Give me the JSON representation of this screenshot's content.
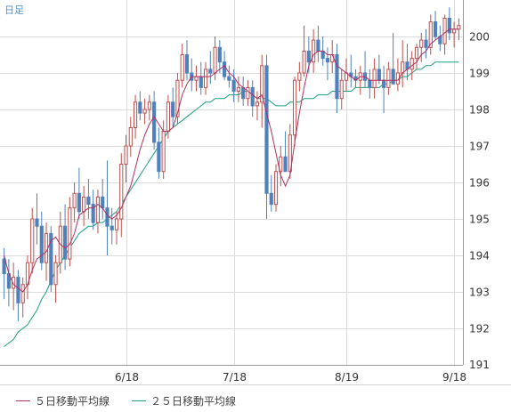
{
  "period_label": "日足",
  "colors": {
    "up": "#c0504d",
    "down": "#4f81bd",
    "ma5": "#b03060",
    "ma25": "#1aa080",
    "grid": "#dcdcdc",
    "axis_text": "#333333",
    "period_text": "#4a90d0"
  },
  "legend": [
    {
      "label": "５日移動平均線",
      "color_key": "ma5"
    },
    {
      "label": "２５日移動平均線",
      "color_key": "ma25"
    }
  ],
  "chart_data": {
    "type": "candlestick",
    "y_range": [
      191,
      201
    ],
    "y_ticks": [
      191,
      192,
      193,
      194,
      195,
      196,
      197,
      198,
      199,
      200
    ],
    "x_ticks": [
      {
        "label": "6/18",
        "index": 26
      },
      {
        "label": "7/18",
        "index": 49
      },
      {
        "label": "8/19",
        "index": 73
      },
      {
        "label": "9/18",
        "index": 96
      }
    ],
    "candles": [
      [
        193.9,
        194.2,
        192.8,
        193.5
      ],
      [
        193.5,
        193.9,
        192.6,
        193.1
      ],
      [
        193.1,
        193.8,
        192.5,
        193.4
      ],
      [
        193.4,
        193.6,
        192.2,
        192.7
      ],
      [
        192.7,
        193.4,
        192.3,
        193.2
      ],
      [
        193.2,
        194.0,
        192.8,
        193.8
      ],
      [
        193.8,
        195.3,
        193.5,
        195.0
      ],
      [
        195.0,
        195.7,
        194.3,
        194.8
      ],
      [
        194.8,
        195.2,
        193.6,
        193.8
      ],
      [
        193.8,
        194.9,
        193.3,
        194.6
      ],
      [
        194.6,
        194.8,
        193.0,
        193.2
      ],
      [
        193.2,
        194.0,
        192.7,
        193.8
      ],
      [
        193.8,
        195.2,
        193.5,
        194.8
      ],
      [
        194.8,
        195.4,
        193.6,
        193.9
      ],
      [
        193.9,
        195.6,
        193.7,
        195.3
      ],
      [
        195.3,
        196.0,
        194.9,
        195.7
      ],
      [
        195.7,
        196.4,
        195.0,
        195.2
      ],
      [
        195.2,
        195.9,
        194.8,
        195.6
      ],
      [
        195.6,
        196.1,
        195.0,
        195.4
      ],
      [
        195.4,
        195.8,
        194.7,
        194.9
      ],
      [
        194.9,
        195.8,
        194.6,
        195.6
      ],
      [
        195.6,
        196.1,
        195.0,
        195.3
      ],
      [
        195.3,
        196.6,
        194.0,
        194.8
      ],
      [
        194.8,
        195.3,
        194.3,
        194.7
      ],
      [
        194.7,
        195.2,
        194.3,
        195.0
      ],
      [
        195.0,
        196.8,
        194.5,
        196.5
      ],
      [
        196.5,
        197.3,
        196.0,
        197.0
      ],
      [
        197.0,
        197.8,
        196.7,
        197.5
      ],
      [
        197.5,
        198.4,
        197.2,
        198.2
      ],
      [
        198.2,
        198.5,
        197.7,
        197.9
      ],
      [
        197.9,
        198.3,
        197.6,
        198.0
      ],
      [
        198.0,
        198.4,
        197.7,
        198.2
      ],
      [
        198.2,
        198.5,
        196.9,
        197.1
      ],
      [
        197.1,
        197.5,
        196.1,
        196.3
      ],
      [
        196.3,
        197.7,
        196.1,
        197.4
      ],
      [
        197.4,
        198.4,
        197.2,
        198.2
      ],
      [
        198.2,
        198.6,
        197.5,
        197.8
      ],
      [
        197.8,
        199.0,
        197.6,
        198.8
      ],
      [
        198.8,
        199.8,
        198.6,
        199.5
      ],
      [
        199.5,
        199.9,
        198.8,
        199.0
      ],
      [
        199.0,
        199.4,
        198.5,
        198.8
      ],
      [
        198.8,
        199.2,
        198.5,
        198.9
      ],
      [
        198.9,
        199.3,
        198.4,
        198.6
      ],
      [
        198.6,
        199.3,
        198.4,
        199.1
      ],
      [
        199.1,
        199.6,
        198.7,
        199.0
      ],
      [
        199.0,
        200.0,
        198.8,
        199.7
      ],
      [
        199.7,
        199.9,
        199.0,
        199.3
      ],
      [
        199.3,
        199.6,
        198.8,
        198.9
      ],
      [
        198.9,
        199.2,
        198.6,
        198.8
      ],
      [
        198.8,
        199.1,
        198.2,
        198.5
      ],
      [
        198.5,
        198.9,
        198.2,
        198.6
      ],
      [
        198.6,
        198.9,
        198.1,
        198.3
      ],
      [
        198.3,
        198.8,
        198.1,
        198.6
      ],
      [
        198.6,
        198.8,
        197.8,
        198.1
      ],
      [
        198.1,
        198.5,
        197.7,
        198.2
      ],
      [
        198.2,
        199.5,
        197.5,
        199.2
      ],
      [
        199.2,
        199.5,
        195.0,
        195.7
      ],
      [
        195.7,
        196.2,
        195.2,
        195.4
      ],
      [
        195.4,
        196.5,
        195.2,
        196.3
      ],
      [
        196.3,
        197.0,
        195.9,
        196.7
      ],
      [
        196.7,
        197.4,
        196.4,
        196.3
      ],
      [
        196.3,
        197.6,
        196.1,
        197.3
      ],
      [
        197.3,
        198.9,
        197.0,
        198.8
      ],
      [
        198.8,
        199.3,
        198.5,
        199.0
      ],
      [
        199.0,
        200.3,
        198.9,
        199.6
      ],
      [
        199.6,
        200.0,
        199.0,
        199.3
      ],
      [
        199.3,
        200.2,
        199.0,
        199.9
      ],
      [
        199.9,
        200.3,
        199.3,
        199.6
      ],
      [
        199.6,
        200.0,
        199.2,
        199.4
      ],
      [
        199.4,
        199.7,
        198.8,
        199.3
      ],
      [
        199.3,
        199.9,
        199.0,
        199.5
      ],
      [
        199.5,
        199.8,
        197.9,
        198.3
      ],
      [
        198.3,
        199.1,
        198.0,
        198.8
      ],
      [
        198.8,
        199.4,
        198.5,
        199.0
      ],
      [
        199.0,
        199.5,
        198.6,
        198.9
      ],
      [
        198.9,
        199.1,
        198.6,
        198.8
      ],
      [
        198.8,
        199.2,
        198.4,
        199.0
      ],
      [
        199.0,
        199.6,
        198.6,
        198.8
      ],
      [
        198.8,
        199.1,
        198.3,
        198.6
      ],
      [
        198.6,
        199.4,
        198.3,
        199.1
      ],
      [
        199.1,
        199.5,
        198.7,
        198.8
      ],
      [
        198.8,
        199.2,
        197.9,
        198.6
      ],
      [
        198.6,
        199.3,
        198.4,
        199.1
      ],
      [
        199.1,
        200.1,
        198.7,
        198.7
      ],
      [
        198.7,
        199.4,
        198.5,
        199.0
      ],
      [
        199.0,
        199.9,
        198.6,
        199.3
      ],
      [
        199.3,
        199.8,
        198.8,
        199.1
      ],
      [
        199.1,
        199.6,
        198.8,
        199.4
      ],
      [
        199.4,
        199.8,
        199.1,
        199.7
      ],
      [
        199.7,
        200.1,
        199.3,
        199.9
      ],
      [
        199.9,
        200.2,
        199.4,
        199.7
      ],
      [
        199.7,
        200.6,
        199.5,
        200.4
      ],
      [
        200.4,
        200.7,
        199.9,
        200.0
      ],
      [
        200.0,
        200.3,
        199.6,
        199.8
      ],
      [
        199.8,
        200.6,
        199.5,
        200.5
      ],
      [
        200.5,
        200.8,
        199.9,
        200.1
      ],
      [
        200.1,
        200.4,
        199.7,
        200.2
      ],
      [
        200.2,
        200.5,
        199.9,
        200.3
      ]
    ],
    "ma5": [
      194.0,
      193.5,
      193.2,
      193.1,
      193.0,
      193.2,
      193.6,
      193.9,
      194.0,
      194.1,
      194.4,
      194.5,
      194.3,
      194.2,
      194.3,
      194.6,
      195.1,
      195.2,
      195.3,
      195.3,
      195.4,
      195.3,
      195.1,
      195.0,
      195.1,
      195.3,
      195.6,
      195.9,
      196.4,
      196.9,
      197.3,
      197.6,
      197.8,
      197.6,
      197.4,
      197.4,
      197.5,
      197.9,
      198.4,
      198.7,
      198.9,
      198.9,
      198.9,
      198.9,
      198.9,
      199.0,
      199.1,
      199.2,
      199.0,
      198.9,
      198.7,
      198.6,
      198.5,
      198.4,
      198.3,
      198.4,
      197.9,
      197.4,
      196.8,
      196.2,
      195.9,
      196.2,
      197.1,
      197.9,
      198.6,
      199.2,
      199.5,
      199.6,
      199.6,
      199.5,
      199.5,
      199.2,
      199.1,
      199.0,
      198.9,
      198.8,
      198.9,
      198.9,
      198.8,
      198.8,
      198.8,
      198.8,
      198.8,
      198.8,
      198.8,
      199.0,
      199.1,
      199.2,
      199.3,
      199.5,
      199.6,
      199.8,
      199.9,
      200.0,
      200.1,
      200.2,
      200.2,
      200.2
    ],
    "ma25": [
      191.5,
      191.6,
      191.7,
      191.9,
      192.0,
      192.1,
      192.3,
      192.5,
      192.8,
      193.0,
      193.3,
      193.6,
      193.8,
      194.0,
      194.2,
      194.4,
      194.6,
      194.7,
      194.8,
      194.8,
      194.9,
      194.9,
      195.0,
      195.1,
      195.2,
      195.4,
      195.6,
      195.8,
      196.0,
      196.2,
      196.4,
      196.6,
      196.8,
      197.0,
      197.2,
      197.4,
      197.5,
      197.6,
      197.7,
      197.8,
      197.9,
      198.0,
      198.1,
      198.2,
      198.2,
      198.3,
      198.3,
      198.3,
      198.4,
      198.4,
      198.4,
      198.5,
      198.5,
      198.4,
      198.3,
      198.3,
      198.3,
      198.2,
      198.1,
      198.1,
      198.1,
      198.2,
      198.2,
      198.2,
      198.3,
      198.3,
      198.3,
      198.4,
      198.4,
      198.4,
      198.5,
      198.5,
      198.5,
      198.5,
      198.5,
      198.6,
      198.6,
      198.6,
      198.6,
      198.6,
      198.6,
      198.7,
      198.7,
      198.8,
      198.8,
      198.9,
      198.9,
      199.0,
      199.1,
      199.1,
      199.2,
      199.2,
      199.3,
      199.3,
      199.3,
      199.3,
      199.3,
      199.3
    ]
  }
}
